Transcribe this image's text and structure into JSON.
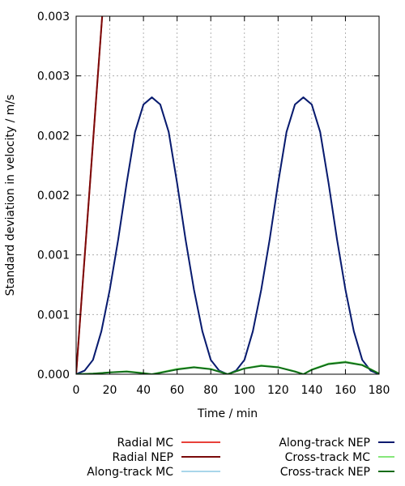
{
  "chart_data": {
    "type": "line",
    "xlabel": "Time / min",
    "ylabel": "Standard deviation in velocity / m/s",
    "xlim": [
      0,
      180
    ],
    "ylim": [
      0,
      0.003
    ],
    "x_ticks": [
      0,
      20,
      40,
      60,
      80,
      100,
      120,
      140,
      160,
      180
    ],
    "y_ticks": [
      {
        "value": 0.0,
        "label": "0.000"
      },
      {
        "value": 0.0005,
        "label": "0.001"
      },
      {
        "value": 0.001,
        "label": "0.001"
      },
      {
        "value": 0.0015,
        "label": "0.002"
      },
      {
        "value": 0.002,
        "label": "0.002"
      },
      {
        "value": 0.0025,
        "label": "0.003"
      },
      {
        "value": 0.003,
        "label": "0.003"
      }
    ],
    "grid": true,
    "legend_position": "bottom",
    "series": [
      {
        "name": "Radial MC",
        "color": "#e8413a",
        "x": [
          0,
          4,
          8,
          12,
          16
        ],
        "y": [
          0,
          0.00078,
          0.00155,
          0.00233,
          0.0031
        ]
      },
      {
        "name": "Radial NEP",
        "color": "#7a0a0a",
        "x": [
          0,
          4,
          8,
          12,
          16
        ],
        "y": [
          0,
          0.00078,
          0.00155,
          0.00233,
          0.0031
        ]
      },
      {
        "name": "Along-track MC",
        "color": "#a9d6ea",
        "x": [
          0,
          5,
          10,
          15,
          20,
          25,
          30,
          35,
          40,
          45,
          50,
          55,
          60,
          65,
          70,
          75,
          80,
          85,
          90,
          95,
          100,
          105,
          110,
          115,
          120,
          125,
          130,
          135,
          140,
          145,
          150,
          155,
          160,
          165,
          170,
          175,
          180
        ],
        "y": [
          0,
          3e-05,
          0.00012,
          0.00036,
          0.00071,
          0.00113,
          0.0016,
          0.00203,
          0.00226,
          0.00232,
          0.00226,
          0.00203,
          0.0016,
          0.00113,
          0.00071,
          0.00036,
          0.00012,
          3e-05,
          0,
          3e-05,
          0.00012,
          0.00036,
          0.00071,
          0.00113,
          0.0016,
          0.00203,
          0.00226,
          0.00232,
          0.00226,
          0.00203,
          0.0016,
          0.00113,
          0.00071,
          0.00036,
          0.00012,
          3e-05,
          0
        ]
      },
      {
        "name": "Along-track NEP",
        "color": "#0a1a6e",
        "x": [
          0,
          5,
          10,
          15,
          20,
          25,
          30,
          35,
          40,
          45,
          50,
          55,
          60,
          65,
          70,
          75,
          80,
          85,
          90,
          95,
          100,
          105,
          110,
          115,
          120,
          125,
          130,
          135,
          140,
          145,
          150,
          155,
          160,
          165,
          170,
          175,
          180
        ],
        "y": [
          0,
          3e-05,
          0.00012,
          0.00036,
          0.00071,
          0.00113,
          0.0016,
          0.00203,
          0.00226,
          0.00232,
          0.00226,
          0.00203,
          0.0016,
          0.00113,
          0.00071,
          0.00036,
          0.00012,
          3e-05,
          0,
          3e-05,
          0.00012,
          0.00036,
          0.00071,
          0.00113,
          0.0016,
          0.00203,
          0.00226,
          0.00232,
          0.00226,
          0.00203,
          0.0016,
          0.00113,
          0.00071,
          0.00036,
          0.00012,
          3e-05,
          0
        ]
      },
      {
        "name": "Cross-track MC",
        "color": "#86e77a",
        "x": [
          0,
          10,
          20,
          30,
          40,
          45,
          50,
          60,
          70,
          80,
          90,
          100,
          110,
          120,
          130,
          135,
          140,
          150,
          160,
          170,
          180
        ],
        "y": [
          0,
          5e-06,
          1.5e-05,
          2.5e-05,
          1e-05,
          0,
          1.5e-05,
          4.5e-05,
          6e-05,
          4.5e-05,
          0,
          5e-05,
          7.5e-05,
          6e-05,
          2.5e-05,
          0,
          4e-05,
          9e-05,
          0.000105,
          8e-05,
          5e-06
        ]
      },
      {
        "name": "Cross-track NEP",
        "color": "#0e6b16",
        "x": [
          0,
          10,
          20,
          30,
          40,
          45,
          50,
          60,
          70,
          80,
          90,
          100,
          110,
          120,
          130,
          135,
          140,
          150,
          160,
          170,
          180
        ],
        "y": [
          0,
          5e-06,
          1.5e-05,
          2.2e-05,
          8e-06,
          0,
          1.2e-05,
          4e-05,
          5.8e-05,
          4.2e-05,
          0,
          4.8e-05,
          7e-05,
          5.8e-05,
          2.2e-05,
          0,
          3.7e-05,
          8.5e-05,
          0.0001,
          7.6e-05,
          5e-06
        ]
      }
    ]
  }
}
